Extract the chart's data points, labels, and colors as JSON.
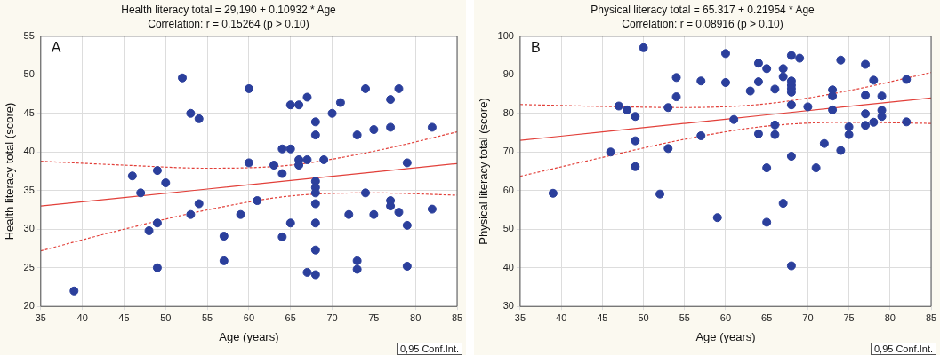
{
  "chart_data": [
    {
      "type": "scatter",
      "title": "Health literacy total = 29,190 + 0.10932 * Age",
      "subtitle": "Correlation: r = 0.15264 (p > 0.10)",
      "xlabel": "Age (years)",
      "ylabel": "Health literacy total (score)",
      "annotations": [
        "A",
        "0,95 Conf.Int."
      ],
      "xlim": [
        35,
        85
      ],
      "xticks": [
        35,
        40,
        45,
        50,
        55,
        60,
        65,
        70,
        75,
        80,
        85
      ],
      "ylim": [
        20,
        55
      ],
      "yticks": [
        20,
        25,
        30,
        35,
        40,
        45,
        50,
        55
      ],
      "grid": true,
      "legend": false,
      "marker": "circle",
      "series": [
        {
          "color": "#2b3f9c",
          "x": [
            39,
            46,
            47,
            48,
            49,
            49,
            49,
            50,
            52,
            53,
            53,
            54,
            54,
            57,
            57,
            59,
            60,
            60,
            61,
            63,
            64,
            64,
            64,
            65,
            65,
            65,
            66,
            66,
            66,
            67,
            67,
            67,
            68,
            68,
            68,
            68,
            68,
            68,
            68,
            68,
            68,
            69,
            70,
            71,
            72,
            73,
            73,
            73,
            74,
            74,
            75,
            75,
            77,
            77,
            77,
            77,
            78,
            78,
            79,
            79,
            79,
            82,
            82
          ],
          "values": [
            22.0,
            36.9,
            34.7,
            29.8,
            37.6,
            30.8,
            25.0,
            36.0,
            49.6,
            45.0,
            31.9,
            44.3,
            33.3,
            29.1,
            25.9,
            31.9,
            48.2,
            38.6,
            33.7,
            38.3,
            40.4,
            37.2,
            29.0,
            46.1,
            40.4,
            30.8,
            46.1,
            39.0,
            38.3,
            47.1,
            39.0,
            24.4,
            43.9,
            42.2,
            36.2,
            35.4,
            34.7,
            33.3,
            30.8,
            27.3,
            24.1,
            39.0,
            45.0,
            46.4,
            31.9,
            42.2,
            25.9,
            24.8,
            48.2,
            34.7,
            42.9,
            31.9,
            46.8,
            43.2,
            33.7,
            33.0,
            48.2,
            32.2,
            38.6,
            30.5,
            25.2,
            43.2,
            32.6
          ]
        },
        {
          "type": "line",
          "color": "#e2403a",
          "line_style": "solid",
          "marker": "none",
          "x": [
            35,
            45,
            55,
            65,
            75,
            85
          ],
          "values": [
            33.0,
            34.1,
            35.2,
            36.3,
            37.4,
            38.5
          ]
        },
        {
          "type": "line",
          "color": "#e2403a",
          "line_style": "dashed",
          "marker": "none",
          "x": [
            35,
            45,
            55,
            65,
            75,
            85
          ],
          "values": [
            27.2,
            30.0,
            32.5,
            34.3,
            34.7,
            34.4
          ]
        },
        {
          "type": "line",
          "color": "#e2403a",
          "line_style": "dashed",
          "marker": "none",
          "x": [
            35,
            45,
            55,
            65,
            75,
            85
          ],
          "values": [
            38.8,
            38.3,
            37.9,
            38.3,
            40.1,
            42.6
          ]
        }
      ]
    },
    {
      "type": "scatter",
      "title": "Physical literacy total = 65.317 + 0.21954 * Age",
      "subtitle": "Correlation: r = 0.08916 (p > 0.10)",
      "xlabel": "Age (years)",
      "ylabel": "Physical literacy total (score)",
      "annotations": [
        "B",
        "0,95 Conf.Int."
      ],
      "xlim": [
        35,
        85
      ],
      "xticks": [
        35,
        40,
        45,
        50,
        55,
        60,
        65,
        70,
        75,
        80,
        85
      ],
      "ylim": [
        30,
        100
      ],
      "yticks": [
        30,
        40,
        50,
        60,
        70,
        80,
        90,
        100
      ],
      "grid": true,
      "legend": false,
      "marker": "circle",
      "series": [
        {
          "color": "#2b3f9c",
          "x": [
            39,
            46,
            47,
            48,
            49,
            49,
            49,
            50,
            52,
            53,
            53,
            54,
            54,
            57,
            57,
            59,
            60,
            60,
            61,
            63,
            64,
            64,
            64,
            65,
            65,
            65,
            66,
            66,
            66,
            67,
            67,
            67,
            68,
            68,
            68,
            68,
            68,
            68,
            68,
            68,
            69,
            70,
            71,
            72,
            73,
            73,
            73,
            74,
            74,
            75,
            75,
            77,
            77,
            77,
            77,
            78,
            78,
            79,
            79,
            79,
            82,
            82
          ],
          "values": [
            59.3,
            70.0,
            81.9,
            80.9,
            79.2,
            72.9,
            66.2,
            97.0,
            59.1,
            81.5,
            70.9,
            89.3,
            84.3,
            88.4,
            74.2,
            53.0,
            95.5,
            88.0,
            78.4,
            85.8,
            93.0,
            88.2,
            74.7,
            91.6,
            65.9,
            51.8,
            86.3,
            77.0,
            74.5,
            91.6,
            89.5,
            56.7,
            95.0,
            88.4,
            87.3,
            86.4,
            85.5,
            82.2,
            68.9,
            40.5,
            94.3,
            81.7,
            65.9,
            72.2,
            86.1,
            84.5,
            80.9,
            93.8,
            70.4,
            76.5,
            74.5,
            92.7,
            84.7,
            79.9,
            76.9,
            88.6,
            77.7,
            84.5,
            80.8,
            79.2,
            88.8,
            77.8
          ]
        },
        {
          "type": "line",
          "color": "#e2403a",
          "line_style": "solid",
          "marker": "none",
          "x": [
            35,
            45,
            55,
            65,
            75,
            85
          ],
          "values": [
            73.0,
            75.2,
            77.4,
            79.6,
            81.8,
            84.0
          ]
        },
        {
          "type": "line",
          "color": "#e2403a",
          "line_style": "dashed",
          "marker": "none",
          "x": [
            35,
            45,
            55,
            65,
            75,
            85
          ],
          "values": [
            63.7,
            68.6,
            73.3,
            76.7,
            77.7,
            77.4
          ]
        },
        {
          "type": "line",
          "color": "#e2403a",
          "line_style": "dashed",
          "marker": "none",
          "x": [
            35,
            45,
            55,
            65,
            75,
            85
          ],
          "values": [
            82.3,
            81.8,
            81.5,
            82.5,
            85.9,
            90.6
          ]
        }
      ]
    }
  ]
}
